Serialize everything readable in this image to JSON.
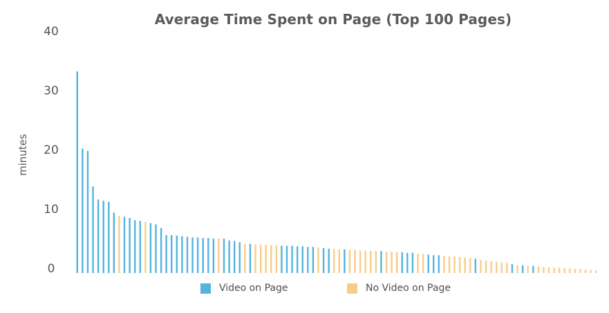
{
  "chart_data": {
    "type": "bar",
    "title": "Average Time Spent on Page (Top 100 Pages)",
    "xlabel": "",
    "ylabel": "minutes",
    "ylim": [
      0,
      40
    ],
    "yticks": [
      0,
      10,
      20,
      30,
      40
    ],
    "grid": false,
    "legend_position": "bottom-center",
    "colors": {
      "video": "#52b3de",
      "no_video": "#f6cd86"
    },
    "legend": [
      {
        "key": "video",
        "label": "Video on Page"
      },
      {
        "key": "no_video",
        "label": "No Video on Page"
      }
    ],
    "bars": [
      {
        "value": 34,
        "group": "video"
      },
      {
        "value": 21,
        "group": "video"
      },
      {
        "value": 20.6,
        "group": "video"
      },
      {
        "value": 14.6,
        "group": "video"
      },
      {
        "value": 12.4,
        "group": "video"
      },
      {
        "value": 12.2,
        "group": "video"
      },
      {
        "value": 12,
        "group": "video"
      },
      {
        "value": 10.2,
        "group": "video"
      },
      {
        "value": 9.6,
        "group": "no_video"
      },
      {
        "value": 9.5,
        "group": "video"
      },
      {
        "value": 9.3,
        "group": "video"
      },
      {
        "value": 8.9,
        "group": "video"
      },
      {
        "value": 8.8,
        "group": "video"
      },
      {
        "value": 8.6,
        "group": "no_video"
      },
      {
        "value": 8.4,
        "group": "video"
      },
      {
        "value": 8.2,
        "group": "video"
      },
      {
        "value": 7.6,
        "group": "video"
      },
      {
        "value": 6.4,
        "group": "video"
      },
      {
        "value": 6.4,
        "group": "video"
      },
      {
        "value": 6.3,
        "group": "video"
      },
      {
        "value": 6.2,
        "group": "video"
      },
      {
        "value": 6.1,
        "group": "video"
      },
      {
        "value": 6.0,
        "group": "video"
      },
      {
        "value": 6.0,
        "group": "video"
      },
      {
        "value": 5.9,
        "group": "video"
      },
      {
        "value": 5.9,
        "group": "video"
      },
      {
        "value": 5.8,
        "group": "video"
      },
      {
        "value": 5.8,
        "group": "no_video"
      },
      {
        "value": 5.8,
        "group": "video"
      },
      {
        "value": 5.5,
        "group": "video"
      },
      {
        "value": 5.4,
        "group": "video"
      },
      {
        "value": 5.2,
        "group": "video"
      },
      {
        "value": 4.9,
        "group": "no_video"
      },
      {
        "value": 4.9,
        "group": "video"
      },
      {
        "value": 4.8,
        "group": "no_video"
      },
      {
        "value": 4.8,
        "group": "no_video"
      },
      {
        "value": 4.8,
        "group": "no_video"
      },
      {
        "value": 4.7,
        "group": "no_video"
      },
      {
        "value": 4.7,
        "group": "no_video"
      },
      {
        "value": 4.6,
        "group": "video"
      },
      {
        "value": 4.6,
        "group": "video"
      },
      {
        "value": 4.6,
        "group": "video"
      },
      {
        "value": 4.5,
        "group": "video"
      },
      {
        "value": 4.5,
        "group": "video"
      },
      {
        "value": 4.4,
        "group": "video"
      },
      {
        "value": 4.4,
        "group": "video"
      },
      {
        "value": 4.3,
        "group": "no_video"
      },
      {
        "value": 4.2,
        "group": "video"
      },
      {
        "value": 4.1,
        "group": "video"
      },
      {
        "value": 4.1,
        "group": "no_video"
      },
      {
        "value": 4.0,
        "group": "no_video"
      },
      {
        "value": 4.0,
        "group": "video"
      },
      {
        "value": 3.9,
        "group": "no_video"
      },
      {
        "value": 3.9,
        "group": "no_video"
      },
      {
        "value": 3.8,
        "group": "no_video"
      },
      {
        "value": 3.8,
        "group": "no_video"
      },
      {
        "value": 3.7,
        "group": "no_video"
      },
      {
        "value": 3.7,
        "group": "no_video"
      },
      {
        "value": 3.7,
        "group": "video"
      },
      {
        "value": 3.6,
        "group": "no_video"
      },
      {
        "value": 3.6,
        "group": "no_video"
      },
      {
        "value": 3.5,
        "group": "no_video"
      },
      {
        "value": 3.5,
        "group": "video"
      },
      {
        "value": 3.4,
        "group": "video"
      },
      {
        "value": 3.4,
        "group": "video"
      },
      {
        "value": 3.3,
        "group": "no_video"
      },
      {
        "value": 3.2,
        "group": "no_video"
      },
      {
        "value": 3.1,
        "group": "video"
      },
      {
        "value": 3.0,
        "group": "video"
      },
      {
        "value": 3.0,
        "group": "video"
      },
      {
        "value": 2.9,
        "group": "no_video"
      },
      {
        "value": 2.8,
        "group": "no_video"
      },
      {
        "value": 2.8,
        "group": "no_video"
      },
      {
        "value": 2.7,
        "group": "no_video"
      },
      {
        "value": 2.6,
        "group": "no_video"
      },
      {
        "value": 2.5,
        "group": "no_video"
      },
      {
        "value": 2.4,
        "group": "video"
      },
      {
        "value": 2.2,
        "group": "no_video"
      },
      {
        "value": 2.1,
        "group": "no_video"
      },
      {
        "value": 2.0,
        "group": "no_video"
      },
      {
        "value": 1.9,
        "group": "no_video"
      },
      {
        "value": 1.8,
        "group": "no_video"
      },
      {
        "value": 1.7,
        "group": "no_video"
      },
      {
        "value": 1.5,
        "group": "video"
      },
      {
        "value": 1.3,
        "group": "no_video"
      },
      {
        "value": 1.3,
        "group": "video"
      },
      {
        "value": 1.2,
        "group": "no_video"
      },
      {
        "value": 1.2,
        "group": "video"
      },
      {
        "value": 1.1,
        "group": "no_video"
      },
      {
        "value": 1.0,
        "group": "no_video"
      },
      {
        "value": 1.0,
        "group": "no_video"
      },
      {
        "value": 0.9,
        "group": "no_video"
      },
      {
        "value": 0.9,
        "group": "no_video"
      },
      {
        "value": 0.8,
        "group": "no_video"
      },
      {
        "value": 0.8,
        "group": "no_video"
      },
      {
        "value": 0.7,
        "group": "no_video"
      },
      {
        "value": 0.7,
        "group": "no_video"
      },
      {
        "value": 0.6,
        "group": "no_video"
      },
      {
        "value": 0.5,
        "group": "no_video"
      },
      {
        "value": 0.4,
        "group": "no_video"
      }
    ]
  }
}
